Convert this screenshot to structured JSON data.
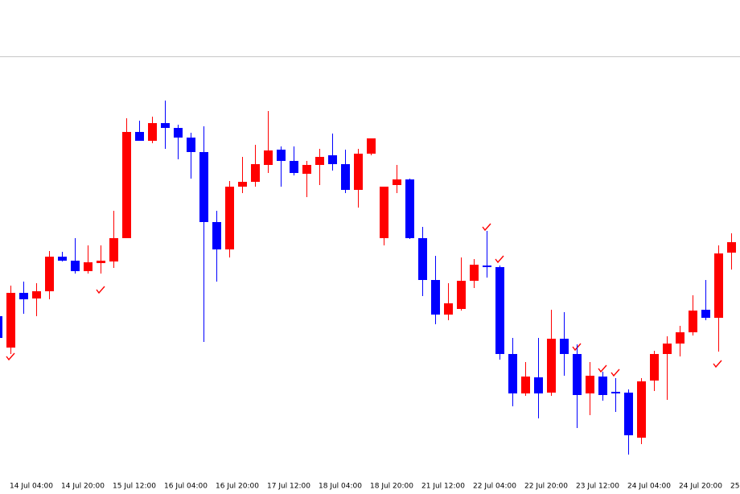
{
  "chart_data": {
    "type": "candlestick",
    "categories": [
      null,
      "14 Jul 04:00",
      null,
      null,
      null,
      "14 Jul 20:00",
      null,
      null,
      null,
      "15 Jul 12:00",
      null,
      null,
      null,
      "16 Jul 04:00",
      null,
      null,
      null,
      "16 Jul 20:00",
      null,
      null,
      null,
      "17 Jul 12:00",
      null,
      null,
      null,
      "18 Jul 04:00",
      null,
      null,
      null,
      "18 Jul 20:00",
      null,
      null,
      null,
      "21 Jul 12:00",
      null,
      null,
      null,
      "22 Jul 04:00",
      null,
      null,
      null,
      "22 Jul 20:00",
      null,
      null,
      null,
      "23 Jul 12:00",
      null,
      null,
      null,
      "24 Jul 04:00",
      null,
      null,
      null,
      "24 Jul 20:00",
      null,
      null,
      null,
      "25"
    ],
    "open": [
      207,
      168,
      236,
      229,
      238,
      281,
      276,
      263,
      273,
      275,
      304,
      436,
      425,
      447,
      441,
      429,
      411,
      324,
      290,
      368,
      374,
      395,
      414,
      400,
      384,
      395,
      407,
      396,
      364,
      409,
      304,
      370,
      377,
      304,
      252,
      209,
      216,
      251,
      270,
      268,
      160,
      111,
      131,
      112,
      179,
      160,
      111,
      132,
      113,
      112,
      56,
      127,
      160,
      173,
      187,
      215,
      205,
      286
    ],
    "high": [
      215,
      245,
      250,
      248,
      288,
      287,
      304,
      295,
      295,
      338,
      453,
      450,
      455,
      475,
      445,
      435,
      443,
      338,
      375,
      405,
      420,
      462,
      418,
      418,
      400,
      415,
      434,
      414,
      415,
      428,
      368,
      395,
      378,
      318,
      282,
      248,
      280,
      278,
      313,
      270,
      180,
      150,
      180,
      215,
      212,
      172,
      150,
      138,
      130,
      116,
      130,
      164,
      182,
      195,
      233,
      252,
      295,
      310
    ],
    "low": [
      175,
      160,
      210,
      207,
      228,
      275,
      260,
      260,
      260,
      267,
      304,
      425,
      422,
      415,
      402,
      378,
      175,
      250,
      280,
      360,
      368,
      385,
      368,
      382,
      355,
      370,
      388,
      360,
      342,
      407,
      295,
      360,
      303,
      232,
      197,
      202,
      214,
      242,
      255,
      153,
      95,
      108,
      80,
      108,
      133,
      68,
      84,
      102,
      88,
      35,
      48,
      114,
      103,
      157,
      183,
      202,
      163,
      265
    ],
    "close": [
      180,
      236,
      228,
      238,
      281,
      276,
      263,
      274,
      276,
      304,
      436,
      425,
      447,
      441,
      429,
      411,
      324,
      290,
      368,
      374,
      396,
      413,
      400,
      385,
      395,
      405,
      396,
      364,
      409,
      428,
      368,
      377,
      304,
      252,
      209,
      223,
      251,
      271,
      268,
      160,
      111,
      132,
      111,
      179,
      160,
      109,
      133,
      109,
      111,
      59,
      126,
      160,
      173,
      187,
      214,
      205,
      285,
      299
    ],
    "up_color": "#ff0000",
    "down_color": "#0000ff",
    "ylim": [
      0,
      530
    ]
  }
}
